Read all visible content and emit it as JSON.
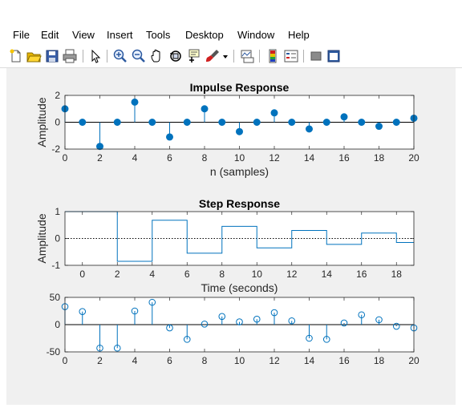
{
  "menu": {
    "items": [
      "File",
      "Edit",
      "View",
      "Insert",
      "Tools",
      "Desktop",
      "Window",
      "Help"
    ],
    "resize_glyph": "↘"
  },
  "toolbar": {
    "icons": [
      "new-file-icon",
      "open-folder-icon",
      "save-icon",
      "print-icon",
      "pointer-icon",
      "zoom-in-icon",
      "zoom-out-icon",
      "pan-hand-icon",
      "rotate-3d-icon",
      "data-cursor-icon",
      "brush-icon",
      "dropdown-arrow-icon",
      "link-plot-icon",
      "colorbar-icon",
      "legend-icon",
      "hide-plot-tools-icon",
      "show-plot-tools-icon"
    ]
  },
  "colors": {
    "stem": "#0072BD",
    "axes_bg": "#ffffff",
    "figure_bg": "#f0f0f0",
    "text": "#262626"
  },
  "chart_data": [
    {
      "type": "stem",
      "title": "Impulse Response",
      "xlabel": "n (samples)",
      "ylabel": "Amplitude",
      "xlim": [
        0,
        20
      ],
      "ylim": [
        -2,
        2
      ],
      "x_ticks": [
        0,
        2,
        4,
        6,
        8,
        10,
        12,
        14,
        16,
        18,
        20
      ],
      "y_ticks": [
        -2,
        0,
        2
      ],
      "marker": "filled",
      "x": [
        0,
        1,
        2,
        3,
        4,
        5,
        6,
        7,
        8,
        9,
        10,
        11,
        12,
        13,
        14,
        15,
        16,
        17,
        18,
        19,
        20
      ],
      "values": [
        1.0,
        0.0,
        -1.8,
        0.0,
        1.5,
        0.0,
        -1.1,
        0.0,
        1.0,
        0.0,
        -0.7,
        0.0,
        0.7,
        0.0,
        -0.5,
        0.0,
        0.4,
        0.0,
        -0.3,
        0.0,
        0.3
      ]
    },
    {
      "type": "stairs",
      "title": "Step Response",
      "xlabel": "Time (seconds)",
      "ylabel": "Amplitude",
      "xlim": [
        -1,
        19
      ],
      "ylim": [
        -1,
        1
      ],
      "x_ticks": [
        0,
        2,
        4,
        6,
        8,
        10,
        12,
        14,
        16,
        18
      ],
      "y_ticks": [
        -1,
        0,
        1
      ],
      "zero_line": "dotted",
      "x": [
        -1,
        2,
        4,
        6,
        8,
        10,
        12,
        14,
        16,
        18
      ],
      "values": [
        1.0,
        -0.85,
        0.68,
        -0.55,
        0.45,
        -0.35,
        0.3,
        -0.22,
        0.2,
        -0.15
      ]
    },
    {
      "type": "stem",
      "title": "",
      "xlabel": "",
      "ylabel": "",
      "xlim": [
        0,
        20
      ],
      "ylim": [
        -50,
        50
      ],
      "x_ticks": [
        0,
        2,
        4,
        6,
        8,
        10,
        12,
        14,
        16,
        18,
        20
      ],
      "y_ticks": [
        -50,
        0,
        50
      ],
      "marker": "open",
      "x": [
        0,
        1,
        2,
        3,
        4,
        5,
        6,
        7,
        8,
        9,
        10,
        11,
        12,
        13,
        14,
        15,
        16,
        17,
        18,
        19,
        20
      ],
      "values": [
        33,
        24,
        -43,
        -43,
        25,
        41,
        -6,
        -27,
        1,
        15,
        5,
        10,
        22,
        7,
        -25,
        -27,
        3,
        18,
        9,
        -3,
        -6
      ]
    }
  ]
}
